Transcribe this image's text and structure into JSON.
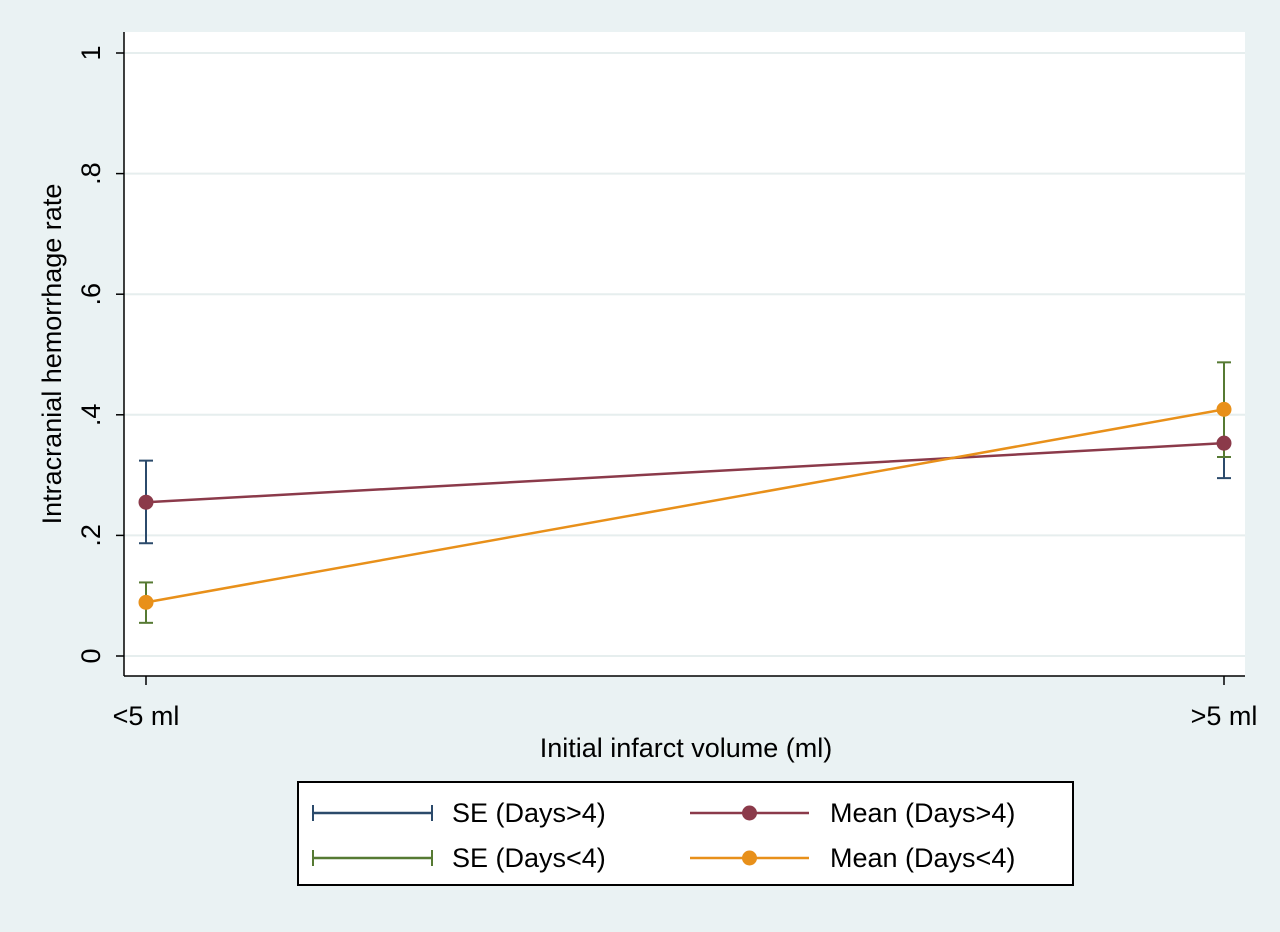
{
  "chart_data": {
    "type": "line",
    "xlabel": "Initial infarct volume (ml)",
    "ylabel": "Intracranial hemorrhage rate",
    "categories": [
      "<5 ml",
      ">5 ml"
    ],
    "ylim": [
      0,
      1
    ],
    "yticks": [
      0,
      0.2,
      0.4,
      0.6,
      0.8,
      1
    ],
    "ytick_labels": [
      "0",
      ".2",
      ".4",
      ".6",
      ".8",
      "1"
    ],
    "grid": true,
    "legend_placement": "bottom",
    "series": [
      {
        "name": "Mean (Days>4)",
        "se_name": "SE (Days>4)",
        "values": [
          0.255,
          0.353
        ],
        "se_low": [
          0.187,
          0.295
        ],
        "se_high": [
          0.324,
          0.411
        ],
        "line_color": "#8b3a4a",
        "marker_color": "#8b3a4a",
        "se_color": "#2b4a6b"
      },
      {
        "name": "Mean (Days<4)",
        "se_name": "SE (Days<4)",
        "values": [
          0.089,
          0.409
        ],
        "se_low": [
          0.055,
          0.33
        ],
        "se_high": [
          0.122,
          0.487
        ],
        "line_color": "#e8901a",
        "marker_color": "#e8901a",
        "se_color": "#567a33"
      }
    ],
    "legend": [
      {
        "label": "SE (Days>4)",
        "kind": "se",
        "color": "#2b4a6b"
      },
      {
        "label": "Mean (Days>4)",
        "kind": "mean",
        "color": "#8b3a4a"
      },
      {
        "label": "SE (Days<4)",
        "kind": "se",
        "color": "#567a33"
      },
      {
        "label": "Mean (Days<4)",
        "kind": "mean",
        "color": "#e8901a"
      }
    ]
  }
}
